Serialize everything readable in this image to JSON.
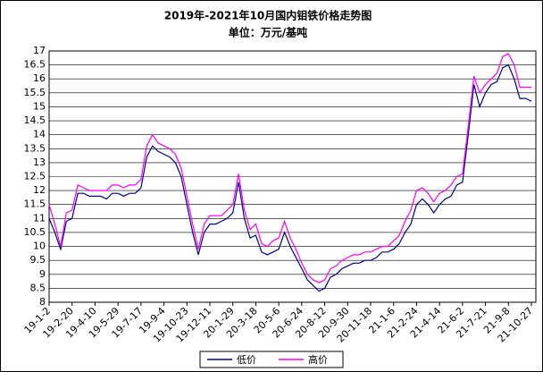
{
  "chart_data": {
    "type": "line",
    "title": "2019年-2021年10月国内钼铁价格走势图",
    "subtitle": "单位：万元/基吨",
    "categories": [
      "19-1-2",
      null,
      null,
      null,
      "19-2-20",
      null,
      null,
      null,
      "19-4-10",
      null,
      null,
      null,
      "19-5-29",
      null,
      null,
      null,
      "19-7-17",
      null,
      null,
      null,
      "19-9-4",
      null,
      null,
      null,
      "19-10-23",
      null,
      null,
      null,
      "19-12-11",
      null,
      null,
      null,
      "20-1-29",
      null,
      null,
      null,
      "20-3-18",
      null,
      null,
      null,
      "20-5-6",
      null,
      null,
      null,
      "20-6-24",
      null,
      null,
      null,
      "20-8-12",
      null,
      null,
      null,
      "20-9-30",
      null,
      null,
      null,
      "20-11-18",
      null,
      null,
      null,
      "21-1-6",
      null,
      null,
      null,
      "21-2-24",
      null,
      null,
      null,
      "21-4-14",
      null,
      null,
      null,
      "21-6-2",
      null,
      null,
      null,
      "21-7-21",
      null,
      null,
      null,
      "21-9-8",
      null,
      null,
      null,
      "21-10-27"
    ],
    "series": [
      {
        "name": "低价",
        "color": "#000080",
        "values": [
          11.0,
          10.5,
          9.9,
          10.9,
          11.0,
          11.9,
          11.9,
          11.8,
          11.8,
          11.8,
          11.7,
          11.9,
          11.9,
          11.8,
          11.9,
          11.9,
          12.1,
          13.2,
          13.6,
          13.4,
          13.3,
          13.2,
          13.0,
          12.5,
          11.5,
          10.5,
          9.7,
          10.5,
          10.8,
          10.8,
          10.9,
          11.0,
          11.2,
          12.3,
          11.0,
          10.3,
          10.4,
          9.8,
          9.7,
          9.8,
          9.9,
          10.5,
          10.0,
          9.6,
          9.2,
          8.8,
          8.6,
          8.4,
          8.5,
          8.9,
          9.0,
          9.2,
          9.3,
          9.4,
          9.4,
          9.5,
          9.5,
          9.6,
          9.8,
          9.8,
          9.9,
          10.1,
          10.5,
          10.8,
          11.5,
          11.7,
          11.5,
          11.2,
          11.5,
          11.7,
          11.8,
          12.2,
          12.3,
          14.0,
          15.8,
          15.0,
          15.5,
          15.8,
          15.9,
          16.4,
          16.5,
          16.0,
          15.3,
          15.3,
          15.2
        ]
      },
      {
        "name": "高价",
        "color": "#ff00ff",
        "values": [
          11.5,
          10.8,
          10.0,
          11.2,
          11.3,
          12.2,
          12.1,
          12.0,
          12.0,
          12.0,
          12.0,
          12.2,
          12.2,
          12.1,
          12.2,
          12.2,
          12.4,
          13.6,
          14.0,
          13.7,
          13.6,
          13.5,
          13.3,
          12.8,
          11.8,
          10.8,
          9.9,
          10.8,
          11.1,
          11.1,
          11.1,
          11.3,
          11.5,
          12.6,
          11.3,
          10.6,
          10.8,
          10.1,
          10.0,
          10.2,
          10.3,
          10.9,
          10.3,
          9.9,
          9.4,
          9.0,
          8.8,
          8.7,
          8.8,
          9.2,
          9.3,
          9.5,
          9.6,
          9.7,
          9.7,
          9.8,
          9.8,
          9.9,
          10.0,
          10.0,
          10.2,
          10.4,
          10.9,
          11.3,
          12.0,
          12.1,
          11.9,
          11.6,
          11.9,
          12.0,
          12.2,
          12.5,
          12.6,
          14.3,
          16.1,
          15.5,
          15.8,
          16.0,
          16.2,
          16.8,
          16.9,
          16.5,
          15.7,
          15.7,
          15.7
        ]
      }
    ],
    "ylim": [
      8,
      17
    ],
    "yticks": [
      8,
      8.5,
      9,
      9.5,
      10,
      10.5,
      11,
      11.5,
      12,
      12.5,
      13,
      13.5,
      14,
      14.5,
      15,
      15.5,
      16,
      16.5,
      17
    ],
    "grid": true,
    "legend": "bottom"
  }
}
